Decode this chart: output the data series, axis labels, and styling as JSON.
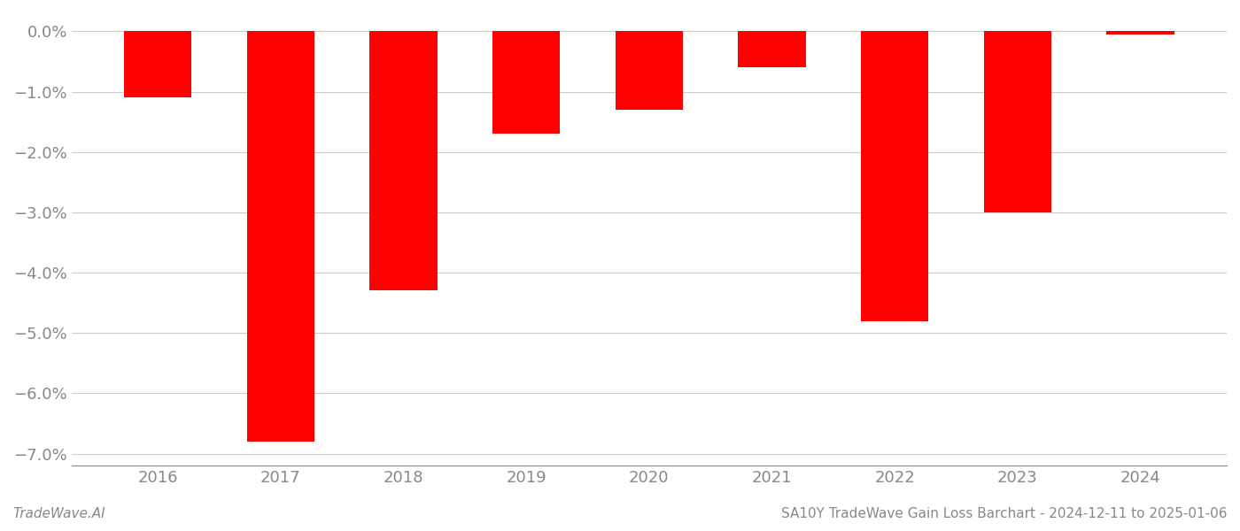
{
  "years": [
    2016,
    2017,
    2018,
    2019,
    2020,
    2021,
    2022,
    2023,
    2024
  ],
  "values": [
    -0.011,
    -0.068,
    -0.043,
    -0.017,
    -0.013,
    -0.006,
    -0.048,
    -0.03,
    -0.0005
  ],
  "bar_color": "#ff0000",
  "background_color": "#ffffff",
  "grid_color": "#cccccc",
  "ylim_min": -0.072,
  "ylim_max": 0.003,
  "yticks": [
    0.0,
    -0.01,
    -0.02,
    -0.03,
    -0.04,
    -0.05,
    -0.06,
    -0.07
  ],
  "footer_left": "TradeWave.AI",
  "footer_right": "SA10Y TradeWave Gain Loss Barchart - 2024-12-11 to 2025-01-06",
  "footer_fontsize": 11,
  "tick_fontsize": 13,
  "axis_color": "#888888",
  "bar_width": 0.55
}
